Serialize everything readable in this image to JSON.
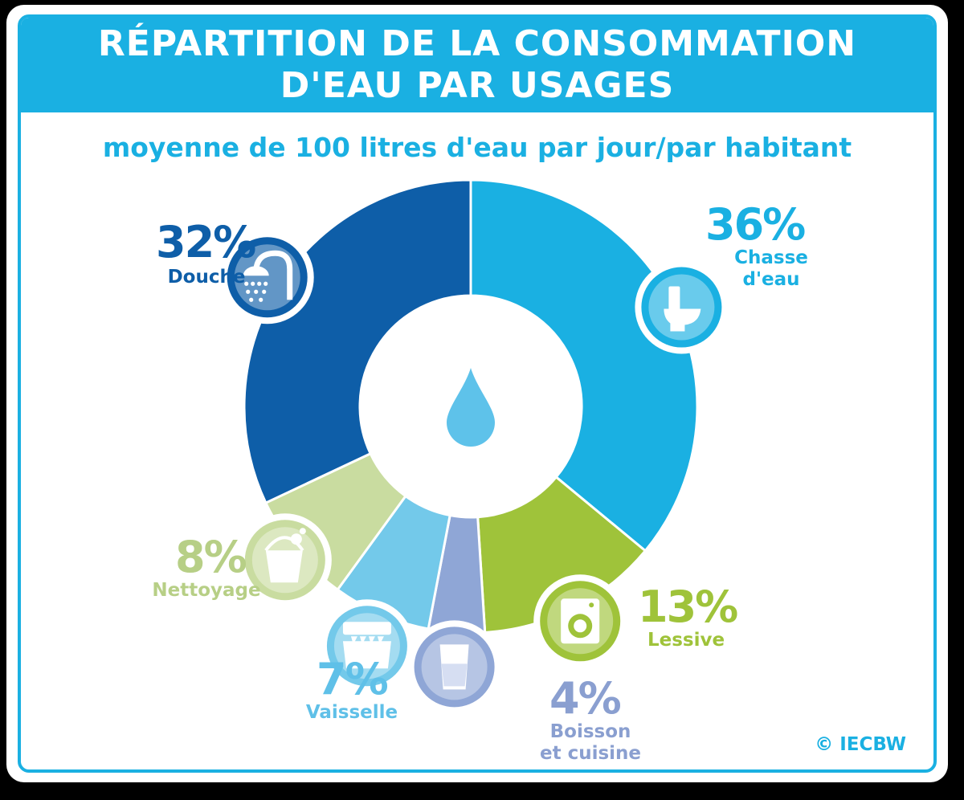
{
  "header": {
    "title_line1": "RÉPARTITION DE LA CONSOMMATION",
    "title_line2": "D'EAU PAR USAGES"
  },
  "subtitle": "moyenne de 100 litres d'eau par jour/par habitant",
  "copyright": "© IECBW",
  "colors": {
    "header": "#1ab0e2",
    "chasse": "#1ab0e2",
    "lessive": "#9fc33a",
    "boisson": "#8fa6d6",
    "vaisselle": "#73c9ea",
    "nettoyage": "#c9dca0",
    "douche": "#0e5ea8"
  },
  "chart_data": {
    "type": "pie",
    "unit": "%",
    "slices": [
      {
        "key": "chasse",
        "value": 36,
        "value_label": "36%",
        "label_lines": [
          "Chasse",
          "d'eau"
        ],
        "color": "#1ab0e2",
        "icon": "toilet-icon"
      },
      {
        "key": "lessive",
        "value": 13,
        "value_label": "13%",
        "label_lines": [
          "Lessive"
        ],
        "color": "#9fc33a",
        "icon": "washing-machine-icon"
      },
      {
        "key": "boisson",
        "value": 4,
        "value_label": "4%",
        "label_lines": [
          "Boisson",
          "et cuisine"
        ],
        "color": "#8fa6d6",
        "icon": "glass-icon"
      },
      {
        "key": "vaisselle",
        "value": 7,
        "value_label": "7%",
        "label_lines": [
          "Vaisselle"
        ],
        "color": "#73c9ea",
        "icon": "dishwasher-icon"
      },
      {
        "key": "nettoyage",
        "value": 8,
        "value_label": "8%",
        "label_lines": [
          "Nettoyage"
        ],
        "color": "#c9dca0",
        "icon": "bucket-icon"
      },
      {
        "key": "douche",
        "value": 32,
        "value_label": "32%",
        "label_lines": [
          "Douche"
        ],
        "color": "#0e5ea8",
        "icon": "shower-icon"
      }
    ],
    "center_icon": "water-drop-icon"
  }
}
